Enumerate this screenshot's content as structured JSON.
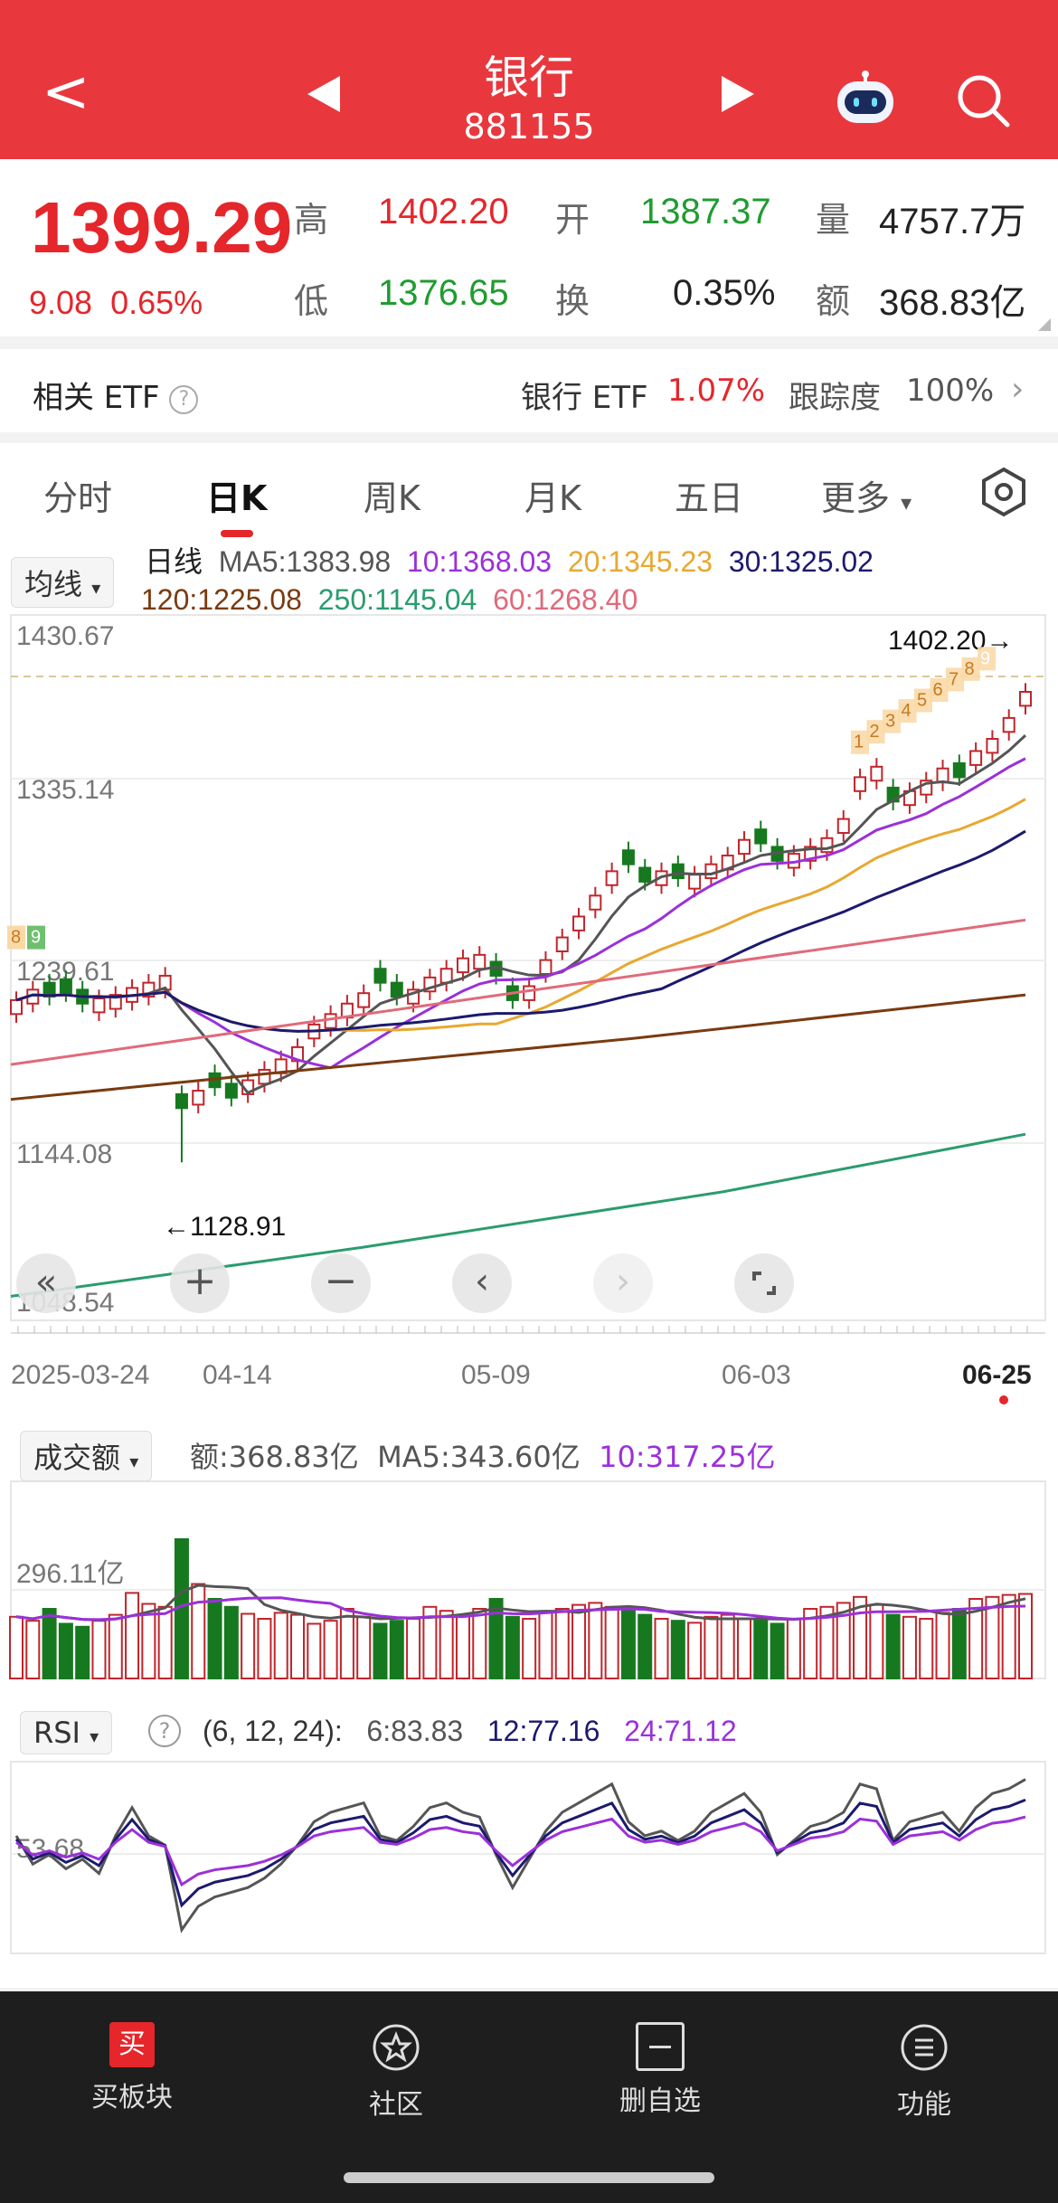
{
  "header": {
    "title": "银行",
    "code": "881155"
  },
  "quote": {
    "price": "1399.29",
    "change": "9.08",
    "change_pct": "0.65%",
    "high_label": "高",
    "high": "1402.20",
    "open_label": "开",
    "open": "1387.37",
    "volume_label": "量",
    "volume": "4757.7万",
    "low_label": "低",
    "low": "1376.65",
    "turnover_label": "换",
    "turnover": "0.35%",
    "amount_label": "额",
    "amount": "368.83亿"
  },
  "etf": {
    "label": "相关 ETF",
    "name": "银行 ETF",
    "pct": "1.07%",
    "track_label": "跟踪度",
    "track": "100%"
  },
  "tabs": [
    "分时",
    "日K",
    "周K",
    "月K",
    "五日",
    "更多"
  ],
  "kchart": {
    "ma_select": "均线",
    "line_type": "日线",
    "ma5": "MA5:1383.98",
    "ma10": "10:1368.03",
    "ma20": "20:1345.23",
    "ma30": "30:1325.02",
    "ma120": "120:1225.08",
    "ma250": "250:1145.04",
    "ma60": "60:1268.40",
    "y_labels": [
      "1430.67",
      "1335.14",
      "1239.61",
      "1144.08",
      "1048.54"
    ],
    "max_label": "1402.20→",
    "min_label": "←1128.91",
    "x_labels": [
      "2025-03-24",
      "04-14",
      "05-09",
      "06-03",
      "06-25"
    ],
    "colors": {
      "ma5": "#555555",
      "ma10": "#9b30d9",
      "ma20": "#e8a830",
      "ma30": "#1c1a6e",
      "ma120": "#7a3b10",
      "ma250": "#2a9c6e",
      "ma60": "#e06a7a",
      "up": "#c0252b",
      "down": "#17791f"
    },
    "seq_top": [
      "1",
      "2",
      "3",
      "4",
      "5",
      "6",
      "7",
      "8",
      "9"
    ],
    "seq_left": [
      "8",
      "9"
    ]
  },
  "volume": {
    "select": "成交额",
    "amount": "额:368.83亿",
    "ma5": "MA5:343.60亿",
    "ma10": "10:317.25亿",
    "y_label": "296.11亿"
  },
  "rsi": {
    "select": "RSI",
    "params": "(6, 12, 24):",
    "r6": "6:83.83",
    "r12": "12:77.16",
    "r24": "24:71.12",
    "y_label": "53.68"
  },
  "nav": [
    {
      "label": "买板块",
      "icon": "buy-icon"
    },
    {
      "label": "社区",
      "icon": "community-icon"
    },
    {
      "label": "删自选",
      "icon": "remove-watchlist-icon"
    },
    {
      "label": "功能",
      "icon": "menu-icon"
    }
  ]
}
